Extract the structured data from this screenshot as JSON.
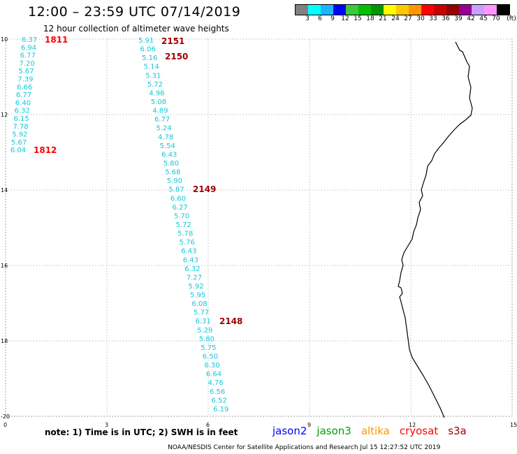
{
  "header": {
    "title": "12:00 – 23:59 UTC 07/14/2019",
    "subtitle": "12 hour collection of altimeter wave heights"
  },
  "scale": {
    "colors": [
      "#808080",
      "#00ffff",
      "#1eb4ff",
      "#0000ff",
      "#3cc83c",
      "#00c000",
      "#009600",
      "#ffff00",
      "#ffc800",
      "#ff9600",
      "#ff0000",
      "#c80000",
      "#960000",
      "#960096",
      "#c8a0ff",
      "#ff96ff",
      "#000000"
    ],
    "labels": [
      "3",
      "6",
      "9",
      "12",
      "15",
      "18",
      "21",
      "24",
      "27",
      "30",
      "33",
      "36",
      "39",
      "42",
      "45",
      "70",
      "(ft)"
    ]
  },
  "axes": {
    "y_labels": [
      "10",
      "12",
      "14",
      "16",
      "18",
      "-20"
    ],
    "x_labels": [
      "0",
      "3",
      "6",
      "9",
      "12",
      "15"
    ]
  },
  "passes": [
    {
      "label": "1811",
      "color": "#ff0000"
    },
    {
      "label": "2151",
      "color": "#a00000"
    },
    {
      "label": "2150",
      "color": "#a00000"
    },
    {
      "label": "1812",
      "color": "#ff0000"
    },
    {
      "label": "2149",
      "color": "#a00000"
    },
    {
      "label": "2148",
      "color": "#a00000"
    }
  ],
  "track_1811": [
    "6.37",
    "6.94",
    "6.77",
    "7.20",
    "5.67",
    "7.39",
    "6.66",
    "6.77",
    "6.40",
    "6.32",
    "6.15",
    "7.78",
    "5.92",
    "5.67",
    "6.04"
  ],
  "track_2151": [
    "5.91",
    "6.06",
    "5.16",
    "5.14",
    "5.31",
    "5.72",
    "4.96",
    "5.08",
    "4.89",
    "6.77",
    "5.24",
    "4.78",
    "5.54",
    "6.43",
    "5.80",
    "5.68",
    "5.90",
    "5.87",
    "6.60",
    "6.27",
    "5.70",
    "5.72",
    "5.78",
    "5.76",
    "6.43",
    "6.43",
    "6.32",
    "7.27",
    "5.92",
    "5.95",
    "6.08",
    "5.77",
    "6.31",
    "5.29",
    "5.80",
    "5.75",
    "6.50",
    "6.30",
    "6.64",
    "4.76",
    "6.56",
    "6.52",
    "6.19"
  ],
  "note": "note:  1) Time is in UTC;  2) SWH is in feet",
  "legend": [
    {
      "label": "jason2",
      "color": "#0000ff"
    },
    {
      "label": "jason3",
      "color": "#00a000"
    },
    {
      "label": "altika",
      "color": "#ff9600"
    },
    {
      "label": "cryosat",
      "color": "#ff0000"
    },
    {
      "label": "s3a",
      "color": "#a00000"
    }
  ],
  "footer": "NOAA/NESDIS Center for Satellite Applications and Research     Jul 15 12:27:52 UTC 2019"
}
